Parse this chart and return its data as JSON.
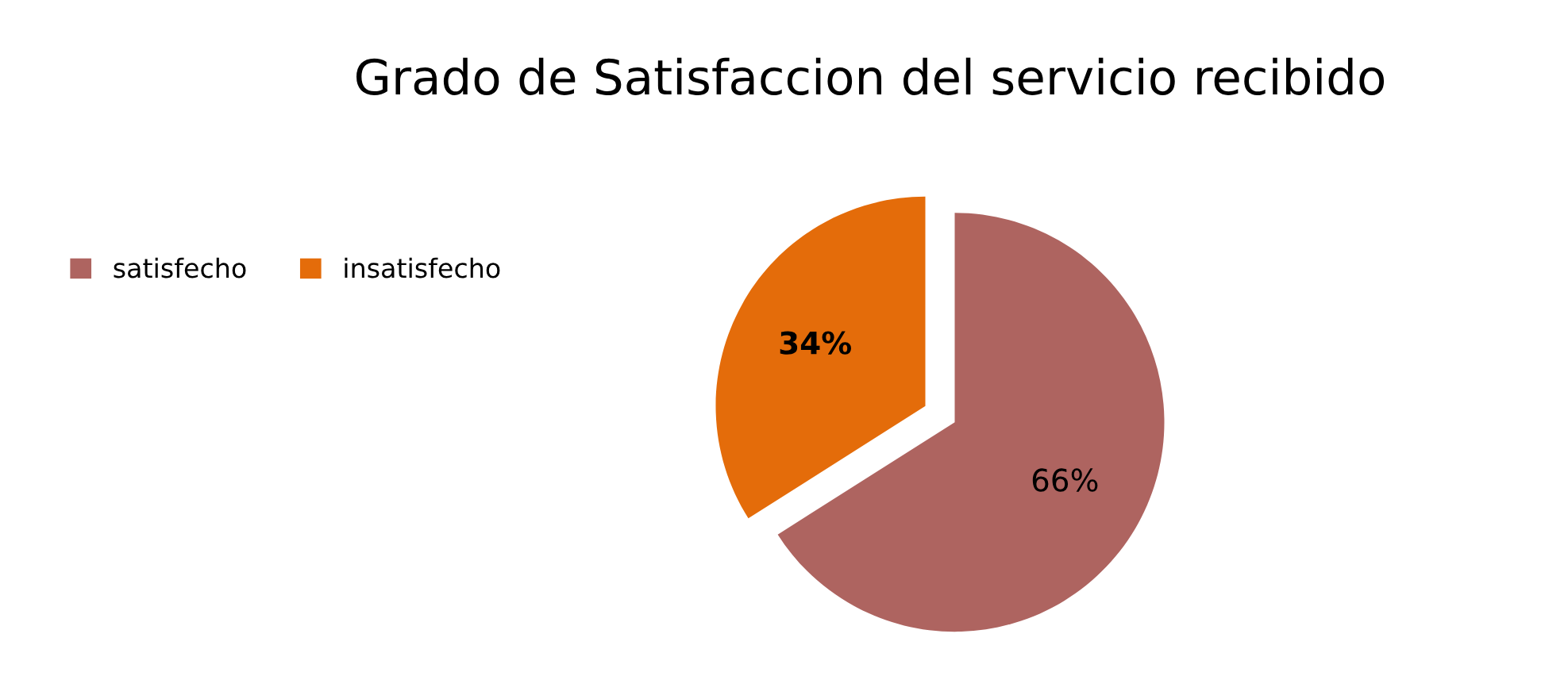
{
  "chart_data": {
    "type": "pie",
    "title": "Grado de Satisfaccion del servicio recibido",
    "categories": [
      "satisfecho",
      "insatisfecho"
    ],
    "values": [
      66,
      34
    ],
    "value_labels": [
      "66%",
      "34%"
    ],
    "colors": [
      "#ae6460",
      "#e46c0a"
    ],
    "legend": "left"
  }
}
